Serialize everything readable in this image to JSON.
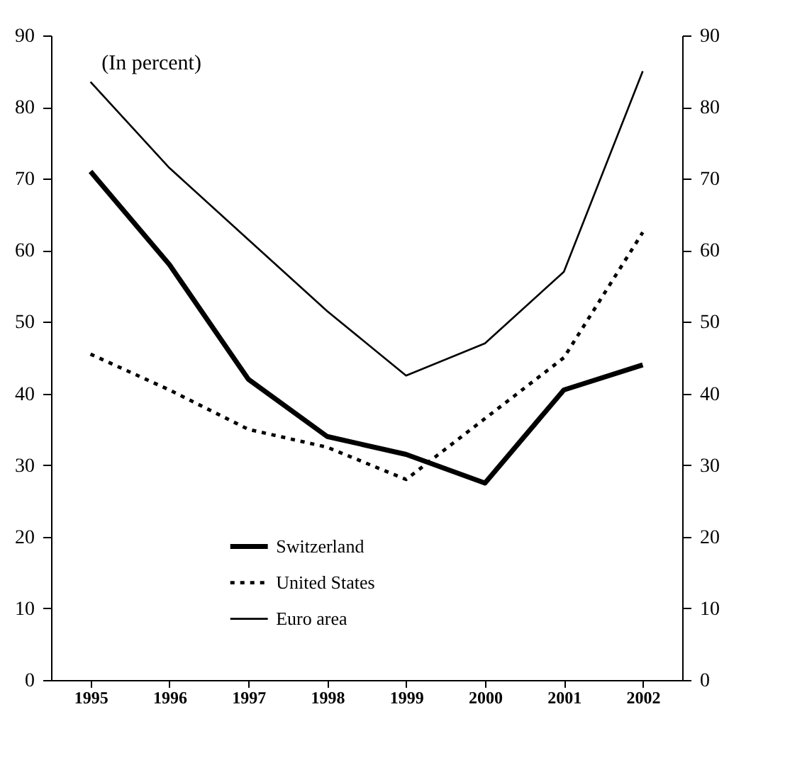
{
  "chart_data": {
    "type": "line",
    "categories": [
      "1995",
      "1996",
      "1997",
      "1998",
      "1999",
      "2000",
      "2001",
      "2002"
    ],
    "series": [
      {
        "name": "Switzerland",
        "color": "#000000",
        "line_style": "solid",
        "values": [
          71,
          58,
          42,
          34,
          31.5,
          27.5,
          40.5,
          44
        ]
      },
      {
        "name": "United States",
        "color": "#000000",
        "line_style": "dotted",
        "values": [
          45.5,
          40.5,
          35,
          32.5,
          28,
          36.5,
          45,
          62.5
        ]
      },
      {
        "name": "Euro area",
        "color": "#000000",
        "line_style": "solid",
        "values": [
          83.5,
          71.5,
          61.5,
          51.5,
          42.5,
          47,
          57,
          85
        ]
      }
    ],
    "ylim": [
      0,
      90
    ],
    "yticks": [
      0,
      10,
      20,
      30,
      40,
      50,
      60,
      70,
      80,
      90
    ],
    "y2lim": [
      0,
      90
    ],
    "y2ticks": [
      0,
      10,
      20,
      30,
      40,
      50,
      60,
      70,
      80,
      90
    ],
    "annotations": [
      "(In percent)"
    ],
    "legend": "bottom",
    "grid": false,
    "marker": "none"
  }
}
